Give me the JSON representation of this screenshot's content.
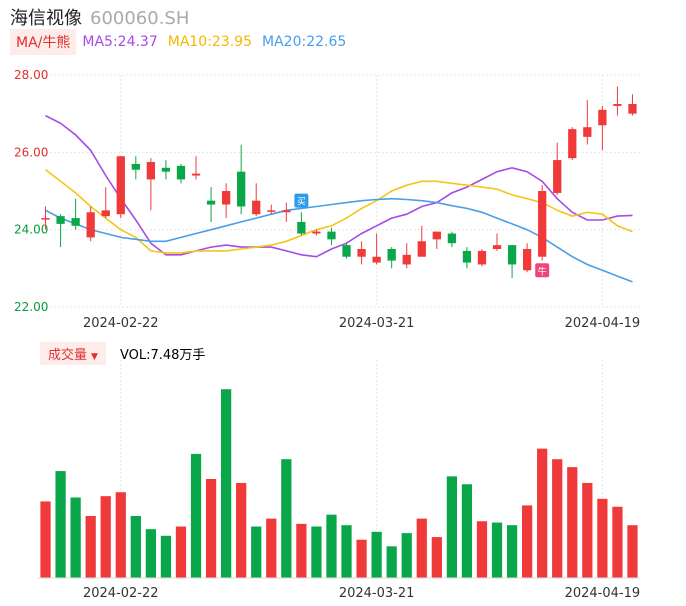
{
  "header": {
    "name": "海信视像",
    "code": "600060.SH"
  },
  "legend": {
    "tag": "MA/牛熊",
    "ma5": "MA5:24.37",
    "ma10": "MA10:23.95",
    "ma20": "MA20:22.65"
  },
  "volume_legend": {
    "tag": "成交量",
    "value": "VOL:7.48万手"
  },
  "markers": {
    "buy": "买",
    "sell": "牛"
  },
  "colors": {
    "up": "#f03a3a",
    "down": "#0aa64a",
    "ma5": "#a64ae8",
    "ma10": "#f5c518",
    "ma20": "#4a9ee8",
    "grid": "#e6e6e6"
  },
  "chart_data": [
    {
      "type": "candlestick",
      "title": "",
      "ylim": [
        22,
        28
      ],
      "yticks": [
        "28.00",
        "26.00",
        "24.00",
        "22.00"
      ],
      "xticks": [
        {
          "label": "2024-02-22",
          "index": 5
        },
        {
          "label": "2024-03-21",
          "index": 22
        },
        {
          "label": "2024-04-19",
          "index": 37
        }
      ],
      "grid": true,
      "candles": [
        {
          "o": 24.28,
          "h": 24.6,
          "l": 24.0,
          "c": 24.3
        },
        {
          "o": 24.35,
          "h": 24.4,
          "l": 23.55,
          "c": 24.15
        },
        {
          "o": 24.3,
          "h": 24.8,
          "l": 24.0,
          "c": 24.1
        },
        {
          "o": 23.8,
          "h": 24.6,
          "l": 23.7,
          "c": 24.45
        },
        {
          "o": 24.35,
          "h": 25.1,
          "l": 24.3,
          "c": 24.5
        },
        {
          "o": 24.4,
          "h": 25.9,
          "l": 24.3,
          "c": 25.9
        },
        {
          "o": 25.7,
          "h": 25.9,
          "l": 25.3,
          "c": 25.55
        },
        {
          "o": 25.3,
          "h": 25.85,
          "l": 24.5,
          "c": 25.75
        },
        {
          "o": 25.6,
          "h": 25.8,
          "l": 25.3,
          "c": 25.5
        },
        {
          "o": 25.65,
          "h": 25.7,
          "l": 25.2,
          "c": 25.3
        },
        {
          "o": 25.4,
          "h": 25.9,
          "l": 25.3,
          "c": 25.45
        },
        {
          "o": 24.75,
          "h": 25.1,
          "l": 24.2,
          "c": 24.65
        },
        {
          "o": 24.65,
          "h": 25.2,
          "l": 24.3,
          "c": 25.0
        },
        {
          "o": 25.5,
          "h": 26.2,
          "l": 24.4,
          "c": 24.6
        },
        {
          "o": 24.4,
          "h": 25.2,
          "l": 24.35,
          "c": 24.75
        },
        {
          "o": 24.5,
          "h": 24.65,
          "l": 24.4,
          "c": 24.5
        },
        {
          "o": 24.45,
          "h": 24.7,
          "l": 24.2,
          "c": 24.5
        },
        {
          "o": 24.2,
          "h": 24.45,
          "l": 23.85,
          "c": 23.9
        },
        {
          "o": 23.9,
          "h": 24.0,
          "l": 23.85,
          "c": 23.95
        },
        {
          "o": 23.95,
          "h": 24.05,
          "l": 23.6,
          "c": 23.75
        },
        {
          "o": 23.6,
          "h": 23.65,
          "l": 23.25,
          "c": 23.3
        },
        {
          "o": 23.3,
          "h": 23.7,
          "l": 23.1,
          "c": 23.5
        },
        {
          "o": 23.15,
          "h": 23.9,
          "l": 23.1,
          "c": 23.3
        },
        {
          "o": 23.5,
          "h": 23.55,
          "l": 23.0,
          "c": 23.2
        },
        {
          "o": 23.1,
          "h": 23.65,
          "l": 23.0,
          "c": 23.35
        },
        {
          "o": 23.3,
          "h": 24.1,
          "l": 23.3,
          "c": 23.7
        },
        {
          "o": 23.75,
          "h": 23.95,
          "l": 23.5,
          "c": 23.95
        },
        {
          "o": 23.9,
          "h": 23.95,
          "l": 23.55,
          "c": 23.65
        },
        {
          "o": 23.45,
          "h": 23.55,
          "l": 23.0,
          "c": 23.15
        },
        {
          "o": 23.1,
          "h": 23.5,
          "l": 23.05,
          "c": 23.45
        },
        {
          "o": 23.5,
          "h": 23.9,
          "l": 23.45,
          "c": 23.6
        },
        {
          "o": 23.6,
          "h": 23.6,
          "l": 22.75,
          "c": 23.1
        },
        {
          "o": 22.95,
          "h": 23.65,
          "l": 22.9,
          "c": 23.5
        },
        {
          "o": 23.3,
          "h": 25.15,
          "l": 23.2,
          "c": 25.0
        },
        {
          "o": 24.95,
          "h": 26.25,
          "l": 24.9,
          "c": 25.8
        },
        {
          "o": 25.85,
          "h": 26.65,
          "l": 25.8,
          "c": 26.6
        },
        {
          "o": 26.4,
          "h": 27.35,
          "l": 26.2,
          "c": 26.65
        },
        {
          "o": 26.7,
          "h": 27.2,
          "l": 26.05,
          "c": 27.1
        },
        {
          "o": 27.2,
          "h": 27.7,
          "l": 26.95,
          "c": 27.25
        },
        {
          "o": 27.0,
          "h": 27.5,
          "l": 26.95,
          "c": 27.25
        }
      ],
      "ma5": [
        26.95,
        26.75,
        26.45,
        26.05,
        25.4,
        24.8,
        24.25,
        23.65,
        23.35,
        23.35,
        23.45,
        23.55,
        23.6,
        23.55,
        23.55,
        23.55,
        23.45,
        23.35,
        23.3,
        23.5,
        23.65,
        23.9,
        24.1,
        24.3,
        24.4,
        24.6,
        24.7,
        24.95,
        25.1,
        25.3,
        25.5,
        25.6,
        25.5,
        25.25,
        24.8,
        24.45,
        24.25,
        24.25,
        24.35,
        24.37
      ],
      "ma10": [
        25.55,
        25.25,
        24.95,
        24.6,
        24.3,
        24.0,
        23.8,
        23.45,
        23.4,
        23.4,
        23.45,
        23.45,
        23.45,
        23.5,
        23.55,
        23.6,
        23.7,
        23.85,
        24.0,
        24.1,
        24.3,
        24.55,
        24.75,
        25.0,
        25.15,
        25.25,
        25.25,
        25.2,
        25.15,
        25.1,
        25.05,
        24.9,
        24.8,
        24.7,
        24.5,
        24.35,
        24.45,
        24.4,
        24.1,
        23.95
      ],
      "ma20": [
        24.5,
        24.3,
        24.15,
        24.0,
        23.9,
        23.8,
        23.75,
        23.7,
        23.7,
        23.8,
        23.9,
        24.0,
        24.1,
        24.2,
        24.3,
        24.4,
        24.5,
        24.55,
        24.6,
        24.65,
        24.7,
        24.75,
        24.78,
        24.8,
        24.78,
        24.75,
        24.7,
        24.62,
        24.55,
        24.45,
        24.3,
        24.15,
        24.0,
        23.8,
        23.55,
        23.3,
        23.1,
        22.95,
        22.8,
        22.65
      ]
    },
    {
      "type": "bar",
      "title": "",
      "ylabel": "",
      "values": [
        58,
        81,
        61,
        47,
        62,
        65,
        47,
        37,
        32,
        39,
        94,
        75,
        143,
        72,
        39,
        45,
        90,
        41,
        39,
        48,
        40,
        29,
        35,
        24,
        34,
        45,
        31,
        77,
        71,
        43,
        42,
        40,
        55,
        98,
        90,
        84,
        72,
        60,
        54,
        40
      ],
      "directions": [
        "up",
        "down",
        "down",
        "up",
        "up",
        "up",
        "down",
        "down",
        "down",
        "up",
        "down",
        "up",
        "down",
        "up",
        "down",
        "up",
        "down",
        "up",
        "down",
        "down",
        "down",
        "up",
        "down",
        "down",
        "down",
        "up",
        "up",
        "down",
        "down",
        "up",
        "down",
        "down",
        "up",
        "up",
        "up",
        "up",
        "up",
        "up",
        "up",
        "up"
      ]
    }
  ]
}
